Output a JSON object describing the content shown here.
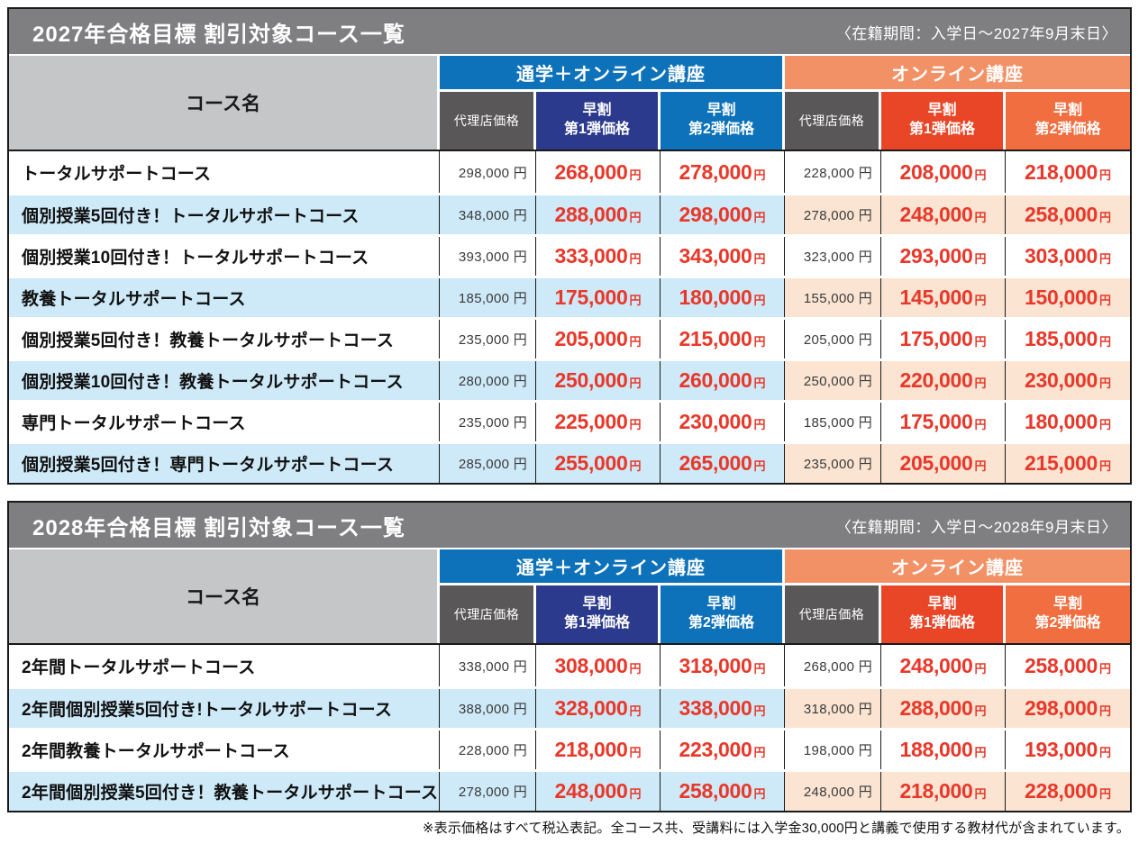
{
  "colors": {
    "title_bar_bg": "#7f7f81",
    "course_header_bg": "#c5c6c8",
    "commute_group_bg": "#0d72b9",
    "online_group_bg": "#f29166",
    "agency_header_bg": "#595757",
    "commute_early1_bg": "#2b3a8c",
    "commute_early2_bg": "#0d72b9",
    "online_early1_bg": "#e94527",
    "online_early2_bg": "#f06e3f",
    "stripe_blue": "#cee9f8",
    "stripe_peach": "#fbe4d2",
    "price_red": "#e8382a",
    "border_black": "#1a1a1a"
  },
  "yen_suffix": "円",
  "footnote": "※表示価格はすべて税込表記。全コース共、受講料には入学金30,000円と講義で使用する教材代が含まれています。",
  "tables": [
    {
      "title": "2027年合格目標 割引対象コース一覧",
      "period": "〈在籍期間：入学日〜2027年9月末日〉",
      "course_header": "コース名",
      "groups": [
        {
          "label": "通学＋オンライン講座"
        },
        {
          "label": "オンライン講座"
        }
      ],
      "subheaders": [
        {
          "top": "代理店価格",
          "bottom": ""
        },
        {
          "top": "早割",
          "bottom": "第1弾価格"
        },
        {
          "top": "早割",
          "bottom": "第2弾価格"
        },
        {
          "top": "代理店価格",
          "bottom": ""
        },
        {
          "top": "早割",
          "bottom": "第1弾価格"
        },
        {
          "top": "早割",
          "bottom": "第2弾価格"
        }
      ],
      "rows": [
        {
          "course": "トータルサポートコース",
          "prices": [
            "298,000",
            "268,000",
            "278,000",
            "228,000",
            "208,000",
            "218,000"
          ]
        },
        {
          "course": "個別授業5回付き！トータルサポートコース",
          "prices": [
            "348,000",
            "288,000",
            "298,000",
            "278,000",
            "248,000",
            "258,000"
          ]
        },
        {
          "course": "個別授業10回付き！トータルサポートコース",
          "prices": [
            "393,000",
            "333,000",
            "343,000",
            "323,000",
            "293,000",
            "303,000"
          ]
        },
        {
          "course": "教養トータルサポートコース",
          "prices": [
            "185,000",
            "175,000",
            "180,000",
            "155,000",
            "145,000",
            "150,000"
          ]
        },
        {
          "course": "個別授業5回付き！教養トータルサポートコース",
          "prices": [
            "235,000",
            "205,000",
            "215,000",
            "205,000",
            "175,000",
            "185,000"
          ]
        },
        {
          "course": "個別授業10回付き！教養トータルサポートコース",
          "prices": [
            "280,000",
            "250,000",
            "260,000",
            "250,000",
            "220,000",
            "230,000"
          ]
        },
        {
          "course": "専門トータルサポートコース",
          "prices": [
            "235,000",
            "225,000",
            "230,000",
            "185,000",
            "175,000",
            "180,000"
          ]
        },
        {
          "course": "個別授業5回付き！専門トータルサポートコース",
          "prices": [
            "285,000",
            "255,000",
            "265,000",
            "235,000",
            "205,000",
            "215,000"
          ]
        }
      ]
    },
    {
      "title": "2028年合格目標 割引対象コース一覧",
      "period": "〈在籍期間：入学日〜2028年9月末日〉",
      "course_header": "コース名",
      "groups": [
        {
          "label": "通学＋オンライン講座"
        },
        {
          "label": "オンライン講座"
        }
      ],
      "subheaders": [
        {
          "top": "代理店価格",
          "bottom": ""
        },
        {
          "top": "早割",
          "bottom": "第1弾価格"
        },
        {
          "top": "早割",
          "bottom": "第2弾価格"
        },
        {
          "top": "代理店価格",
          "bottom": ""
        },
        {
          "top": "早割",
          "bottom": "第1弾価格"
        },
        {
          "top": "早割",
          "bottom": "第2弾価格"
        }
      ],
      "rows": [
        {
          "course": "2年間トータルサポートコース",
          "prices": [
            "338,000",
            "308,000",
            "318,000",
            "268,000",
            "248,000",
            "258,000"
          ]
        },
        {
          "course": "2年間個別授業5回付き!トータルサポートコース",
          "prices": [
            "388,000",
            "328,000",
            "338,000",
            "318,000",
            "288,000",
            "298,000"
          ]
        },
        {
          "course": "2年間教養トータルサポートコース",
          "prices": [
            "228,000",
            "218,000",
            "223,000",
            "198,000",
            "188,000",
            "193,000"
          ]
        },
        {
          "course": "2年間個別授業5回付き！教養トータルサポートコース",
          "prices": [
            "278,000",
            "248,000",
            "258,000",
            "248,000",
            "218,000",
            "228,000"
          ]
        }
      ]
    }
  ]
}
